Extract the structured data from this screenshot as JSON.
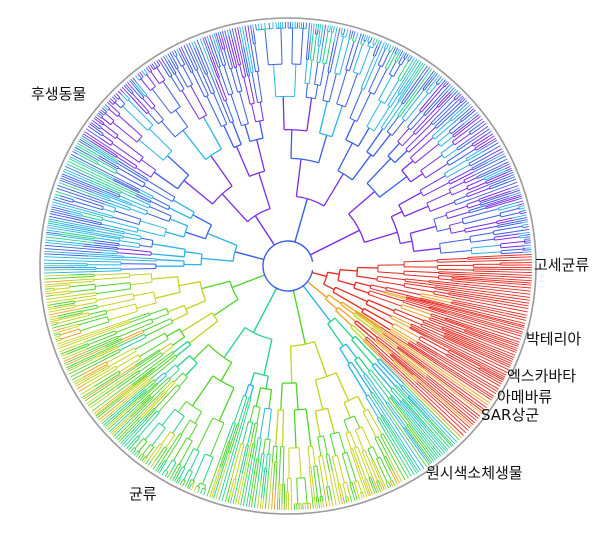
{
  "labels": {
    "animals": "후생동물",
    "archaea": "고세균류",
    "bacteria": "박테리아",
    "excavata": "엑스카바타",
    "amoebozoa": "아메바류",
    "sar": "SAR상군",
    "protists": "원시색소체생물",
    "fungi": "균류"
  },
  "colors": {
    "ring": "#9a9a9a",
    "palette": [
      "#7a2be6",
      "#3a5ee6",
      "#2ab4e6",
      "#25d28a",
      "#4fd42a",
      "#c6d21e",
      "#f2a020",
      "#e8281e"
    ]
  }
}
